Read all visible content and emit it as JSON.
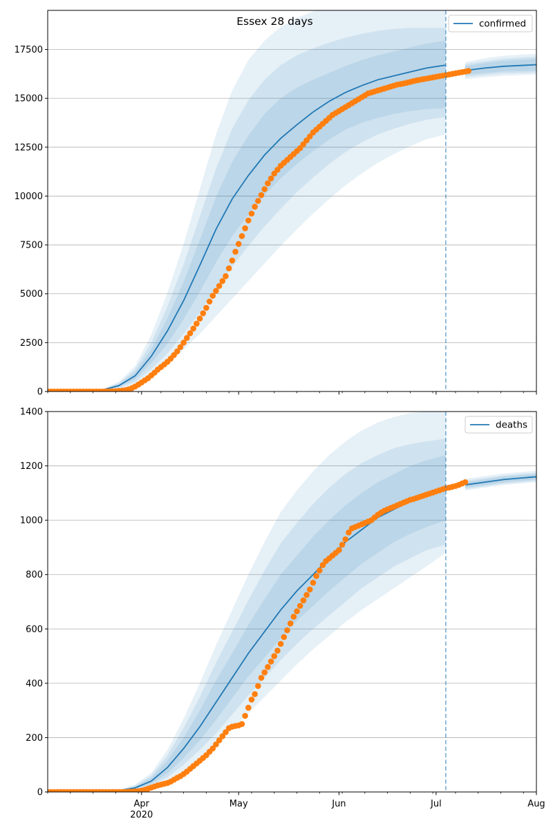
{
  "title": "Essex 28 days",
  "colors": {
    "line": "#1f77b4",
    "points": "#ff7f0e",
    "band": "#1f77b4",
    "grid": "#b0b0b0",
    "axis": "#000000"
  },
  "chart_data": [
    {
      "type": "line",
      "panel": "top",
      "title": "Essex 28 days",
      "xlabel": "",
      "ylabel": "",
      "x_axis": "date",
      "xlim": [
        "2020-03-03",
        "2020-08-01"
      ],
      "x_ticks": [
        {
          "date": "2020-04-01",
          "label": "Apr",
          "sublabel": "2020"
        },
        {
          "date": "2020-05-01",
          "label": "May",
          "sublabel": ""
        },
        {
          "date": "2020-06-01",
          "label": "Jun",
          "sublabel": ""
        },
        {
          "date": "2020-07-01",
          "label": "Jul",
          "sublabel": ""
        },
        {
          "date": "2020-08-01",
          "label": "Aug",
          "sublabel": ""
        }
      ],
      "ylim": [
        0,
        19500
      ],
      "y_ticks": [
        0,
        2500,
        5000,
        7500,
        10000,
        12500,
        15000,
        17500
      ],
      "grid": "horizontal",
      "legend": {
        "position": "top-right",
        "entries": [
          "confirmed"
        ]
      },
      "forecast_start": "2020-07-04",
      "series": [
        {
          "name": "confirmed",
          "kind": "model-median",
          "x": [
            "2020-03-03",
            "2020-03-20",
            "2020-03-25",
            "2020-03-30",
            "2020-04-04",
            "2020-04-09",
            "2020-04-14",
            "2020-04-19",
            "2020-04-24",
            "2020-04-29",
            "2020-05-04",
            "2020-05-09",
            "2020-05-14",
            "2020-05-19",
            "2020-05-24",
            "2020-05-29",
            "2020-06-03",
            "2020-06-08",
            "2020-06-13",
            "2020-06-18",
            "2020-06-23",
            "2020-06-28",
            "2020-07-04",
            "2020-07-10",
            "2020-07-16",
            "2020-07-22",
            "2020-08-01"
          ],
          "y": [
            0,
            80,
            300,
            800,
            1800,
            3100,
            4650,
            6450,
            8300,
            9850,
            11050,
            12100,
            12950,
            13650,
            14300,
            14850,
            15300,
            15650,
            15950,
            16150,
            16350,
            16550,
            16700,
            16420,
            16550,
            16640,
            16720
          ],
          "bands": [
            {
              "lower": [
                0,
                60,
                230,
                620,
                1450,
                2450,
                3700,
                5100,
                6600,
                7950,
                9050,
                10050,
                10900,
                11650,
                12300,
                12900,
                13400,
                13750,
                14000,
                14200,
                14350,
                14450,
                14500,
                16200,
                16300,
                16380,
                16420
              ],
              "upper": [
                0,
                100,
                370,
                980,
                2150,
                3750,
                5600,
                7750,
                9950,
                11750,
                13100,
                14200,
                15000,
                15550,
                15950,
                16300,
                16650,
                16950,
                17200,
                17400,
                17600,
                17800,
                17950,
                16650,
                16800,
                16920,
                17020
              ]
            },
            {
              "lower": [
                0,
                45,
                180,
                480,
                1150,
                1950,
                2950,
                4050,
                5250,
                6400,
                7450,
                8450,
                9350,
                10200,
                10950,
                11650,
                12250,
                12750,
                13150,
                13450,
                13700,
                13900,
                14050,
                16100,
                16200,
                16280,
                16320
              ],
              "upper": [
                0,
                115,
                430,
                1130,
                2500,
                4350,
                6500,
                8950,
                11400,
                13450,
                14900,
                15950,
                16700,
                17200,
                17550,
                17850,
                18100,
                18300,
                18450,
                18550,
                18600,
                18600,
                18600,
                16750,
                16900,
                17030,
                17130
              ]
            },
            {
              "lower": [
                0,
                30,
                130,
                340,
                830,
                1400,
                2150,
                2950,
                3850,
                4750,
                5650,
                6550,
                7450,
                8300,
                9100,
                9850,
                10550,
                11150,
                11700,
                12150,
                12550,
                12900,
                13150,
                15980,
                16080,
                16160,
                16220
              ],
              "upper": [
                0,
                130,
                500,
                1300,
                2900,
                5050,
                7550,
                10350,
                13150,
                15400,
                16950,
                17950,
                18650,
                19100,
                19450,
                19750,
                19950,
                19950,
                19950,
                19950,
                19950,
                19950,
                19950,
                16850,
                17050,
                17180,
                17280
              ]
            }
          ]
        },
        {
          "name": "",
          "kind": "observed",
          "x_start": "2020-03-03",
          "y": [
            0,
            0,
            0,
            0,
            0,
            0,
            0,
            0,
            0,
            0,
            0,
            0,
            0,
            0,
            0,
            0,
            0,
            0,
            2,
            5,
            10,
            18,
            28,
            45,
            70,
            110,
            170,
            250,
            350,
            460,
            570,
            680,
            820,
            960,
            1120,
            1250,
            1380,
            1520,
            1680,
            1860,
            2050,
            2270,
            2500,
            2740,
            2980,
            3220,
            3470,
            3730,
            4000,
            4280,
            4600,
            4900,
            5150,
            5400,
            5650,
            5900,
            6300,
            6700,
            7150,
            7550,
            7950,
            8350,
            8750,
            9100,
            9450,
            9750,
            10050,
            10350,
            10650,
            10900,
            11150,
            11350,
            11550,
            11700,
            11850,
            12000,
            12150,
            12300,
            12450,
            12650,
            12850,
            13050,
            13250,
            13400,
            13550,
            13700,
            13850,
            14000,
            14150,
            14250,
            14350,
            14450,
            14550,
            14650,
            14750,
            14850,
            14950,
            15050,
            15150,
            15250,
            15300,
            15350,
            15400,
            15450,
            15500,
            15550,
            15600,
            15650,
            15700,
            15730,
            15760,
            15800,
            15840,
            15880,
            15920,
            15950,
            15980,
            16010,
            16040,
            16070,
            16100,
            16130,
            16160,
            16190,
            16220,
            16250,
            16280,
            16310,
            16340,
            16370,
            16400
          ]
        }
      ]
    },
    {
      "type": "line",
      "panel": "bottom",
      "xlabel": "",
      "ylabel": "",
      "x_axis": "date",
      "xlim": [
        "2020-03-03",
        "2020-08-01"
      ],
      "x_ticks": [
        {
          "date": "2020-04-01",
          "label": "Apr",
          "sublabel": "2020"
        },
        {
          "date": "2020-05-01",
          "label": "May",
          "sublabel": ""
        },
        {
          "date": "2020-06-01",
          "label": "Jun",
          "sublabel": ""
        },
        {
          "date": "2020-07-01",
          "label": "Jul",
          "sublabel": ""
        },
        {
          "date": "2020-08-01",
          "label": "Aug",
          "sublabel": ""
        }
      ],
      "ylim": [
        0,
        1400
      ],
      "y_ticks": [
        0,
        200,
        400,
        600,
        800,
        1000,
        1200,
        1400
      ],
      "grid": "horizontal",
      "legend": {
        "position": "top-right",
        "entries": [
          "deaths"
        ]
      },
      "forecast_start": "2020-07-04",
      "series": [
        {
          "name": "deaths",
          "kind": "model-median",
          "x": [
            "2020-03-03",
            "2020-03-25",
            "2020-03-30",
            "2020-04-04",
            "2020-04-09",
            "2020-04-14",
            "2020-04-19",
            "2020-04-24",
            "2020-04-29",
            "2020-05-04",
            "2020-05-09",
            "2020-05-14",
            "2020-05-19",
            "2020-05-24",
            "2020-05-29",
            "2020-06-03",
            "2020-06-08",
            "2020-06-13",
            "2020-06-18",
            "2020-06-23",
            "2020-06-28",
            "2020-07-04",
            "2020-07-10",
            "2020-07-16",
            "2020-07-22",
            "2020-08-01"
          ],
          "y": [
            0,
            5,
            15,
            40,
            90,
            160,
            240,
            330,
            420,
            510,
            590,
            670,
            740,
            800,
            860,
            920,
            965,
            1010,
            1040,
            1070,
            1090,
            1110,
            1130,
            1140,
            1150,
            1160
          ],
          "bands": [
            {
              "lower": [
                0,
                4,
                11,
                30,
                68,
                125,
                190,
                265,
                345,
                425,
                495,
                565,
                630,
                685,
                740,
                790,
                840,
                880,
                920,
                950,
                975,
                1000,
                1120,
                1130,
                1140,
                1150
              ],
              "upper": [
                0,
                6,
                20,
                52,
                115,
                200,
                300,
                410,
                510,
                615,
                710,
                800,
                870,
                940,
                1000,
                1055,
                1100,
                1140,
                1170,
                1200,
                1220,
                1240,
                1140,
                1150,
                1160,
                1170
              ]
            },
            {
              "lower": [
                0,
                3,
                9,
                24,
                54,
                100,
                155,
                215,
                285,
                355,
                420,
                485,
                545,
                600,
                650,
                700,
                750,
                790,
                830,
                860,
                890,
                910,
                1115,
                1125,
                1135,
                1145
              ],
              "upper": [
                0,
                7,
                23,
                60,
                135,
                235,
                350,
                475,
                590,
                705,
                815,
                915,
                990,
                1060,
                1120,
                1170,
                1210,
                1240,
                1265,
                1280,
                1290,
                1300,
                1145,
                1155,
                1165,
                1175
              ]
            },
            {
              "lower": [
                0,
                2,
                7,
                18,
                42,
                78,
                122,
                172,
                230,
                290,
                350,
                410,
                470,
                525,
                575,
                625,
                670,
                710,
                750,
                790,
                830,
                880,
                1110,
                1120,
                1130,
                1140
              ],
              "upper": [
                0,
                8,
                27,
                70,
                155,
                270,
                400,
                540,
                670,
                800,
                920,
                1030,
                1110,
                1180,
                1240,
                1290,
                1330,
                1360,
                1380,
                1395,
                1400,
                1400,
                1152,
                1162,
                1172,
                1182
              ]
            }
          ]
        },
        {
          "name": "",
          "kind": "observed",
          "x_start": "2020-03-03",
          "y": [
            0,
            0,
            0,
            0,
            0,
            0,
            0,
            0,
            0,
            0,
            0,
            0,
            0,
            0,
            0,
            0,
            0,
            0,
            0,
            0,
            0,
            0,
            0,
            0,
            0,
            1,
            1,
            2,
            3,
            5,
            8,
            12,
            16,
            20,
            24,
            27,
            30,
            33,
            38,
            45,
            52,
            58,
            66,
            75,
            85,
            95,
            105,
            115,
            125,
            135,
            148,
            160,
            175,
            190,
            205,
            220,
            235,
            240,
            243,
            245,
            250,
            280,
            310,
            340,
            360,
            390,
            420,
            440,
            460,
            480,
            500,
            520,
            545,
            570,
            595,
            620,
            645,
            665,
            685,
            705,
            725,
            745,
            770,
            795,
            815,
            835,
            850,
            860,
            870,
            880,
            890,
            910,
            930,
            955,
            970,
            975,
            980,
            985,
            990,
            995,
            1000,
            1010,
            1020,
            1028,
            1035,
            1040,
            1045,
            1050,
            1055,
            1060,
            1065,
            1070,
            1075,
            1078,
            1082,
            1086,
            1090,
            1094,
            1098,
            1102,
            1106,
            1110,
            1114,
            1118,
            1120,
            1123,
            1126,
            1130,
            1135,
            1140
          ]
        }
      ]
    }
  ]
}
